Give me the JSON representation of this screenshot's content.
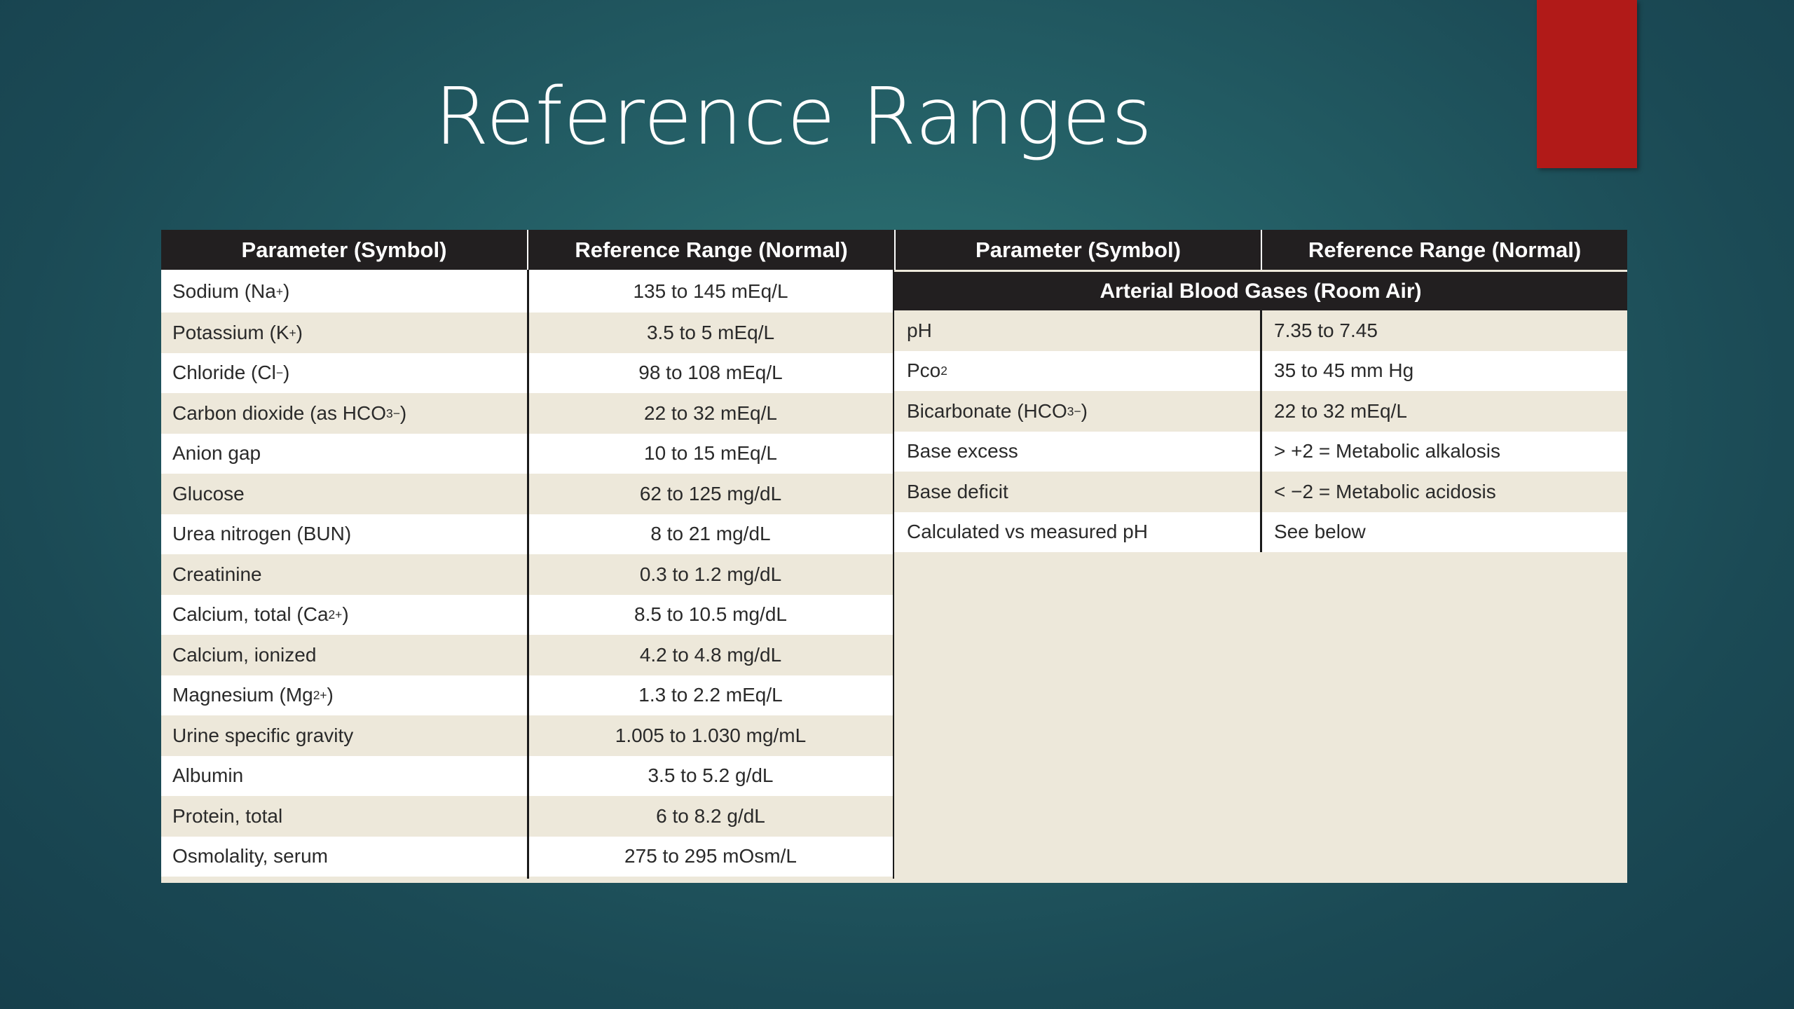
{
  "slide": {
    "title": "Reference Ranges"
  },
  "colors": {
    "background": "#1f5760",
    "accent_block": "#b11a18",
    "header_bg": "#221f20",
    "row_alt": "#ede8da",
    "row_white": "#ffffff"
  },
  "table": {
    "headers": {
      "param": "Parameter (Symbol)",
      "range": "Reference Range (Normal)"
    },
    "left_rows": [
      {
        "param": "Sodium (Na",
        "sup": "+",
        "after": ")",
        "range": "135 to 145 mEq/L"
      },
      {
        "param": "Potassium (K",
        "sup": "+",
        "after": ")",
        "range": "3.5 to 5 mEq/L"
      },
      {
        "param": "Chloride (Cl",
        "sup": "−",
        "after": ")",
        "range": "98 to 108 mEq/L"
      },
      {
        "param": "Carbon dioxide (as HCO",
        "sub": "3",
        "sup": "−",
        "after": ")",
        "range": "22 to 32 mEq/L"
      },
      {
        "param": "Anion gap",
        "range": "10 to 15 mEq/L"
      },
      {
        "param": "Glucose",
        "range": "62 to 125 mg/dL"
      },
      {
        "param": "Urea nitrogen (BUN)",
        "range": "8 to 21 mg/dL"
      },
      {
        "param": "Creatinine",
        "range": "0.3 to 1.2 mg/dL"
      },
      {
        "param": "Calcium, total (Ca",
        "sup": "2+",
        "after": ")",
        "range": "8.5 to 10.5 mg/dL"
      },
      {
        "param": "Calcium, ionized",
        "range": "4.2 to 4.8 mg/dL"
      },
      {
        "param": "Magnesium (Mg",
        "sup": "2+",
        "after": ")",
        "range": "1.3 to 2.2 mEq/L"
      },
      {
        "param": "Urine specific gravity",
        "range": "1.005 to 1.030 mg/mL"
      },
      {
        "param": "Albumin",
        "range": "3.5 to 5.2 g/dL"
      },
      {
        "param": "Protein, total",
        "range": "6 to 8.2 g/dL"
      },
      {
        "param": "Osmolality, serum",
        "range": "275 to 295 mOsm/L"
      }
    ],
    "abg_section": "Arterial Blood Gases (Room Air)",
    "right_rows": [
      {
        "param": "pH",
        "range": "7.35 to 7.45"
      },
      {
        "param": "Pco",
        "sub": "2",
        "range": "35 to 45 mm Hg"
      },
      {
        "param": "Bicarbonate (HCO",
        "sub": "3",
        "sup": "−",
        "after": ")",
        "range": "22 to 32 mEq/L"
      },
      {
        "param": "Base excess",
        "range": "> +2 = Metabolic alkalosis"
      },
      {
        "param": "Base deficit",
        "range": "< −2 = Metabolic acidosis"
      },
      {
        "param": "Calculated vs measured pH",
        "range": "See below"
      }
    ]
  }
}
